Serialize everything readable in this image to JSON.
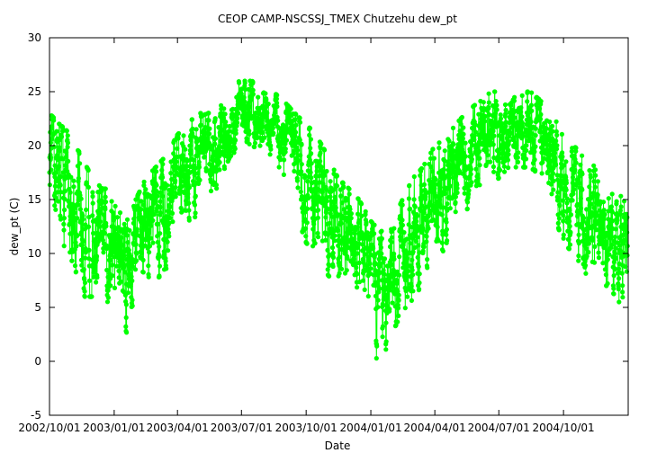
{
  "chart_data": {
    "type": "line",
    "title": "CEOP CAMP-NSCSSJ_TMEX Chutzehu  dew_pt",
    "xlabel": "Date",
    "ylabel": "dew_pt (C)",
    "xlim": [
      "2002-10-01",
      "2005-01-01"
    ],
    "ylim": [
      -5,
      30
    ],
    "x_ticks": [
      "2002/10/01",
      "2003/01/01",
      "2003/04/01",
      "2003/07/01",
      "2003/10/01",
      "2004/01/01",
      "2004/04/01",
      "2004/07/01",
      "2004/10/01"
    ],
    "y_ticks": [
      -5,
      0,
      5,
      10,
      15,
      20,
      25,
      30
    ],
    "grid": false,
    "legend": "none",
    "series_color": "#00ff00",
    "series": [
      {
        "marker": "filled-circle",
        "x": [
          "2002-10-01",
          "2002-10-15",
          "2002-11-01",
          "2002-11-15",
          "2002-12-01",
          "2002-12-15",
          "2003-01-01",
          "2003-01-15",
          "2003-02-01",
          "2003-02-15",
          "2003-03-01",
          "2003-03-15",
          "2003-04-01",
          "2003-04-15",
          "2003-05-01",
          "2003-05-15",
          "2003-06-01",
          "2003-06-15",
          "2003-07-01",
          "2003-07-15",
          "2003-08-01",
          "2003-08-15",
          "2003-09-01",
          "2003-09-15",
          "2003-10-01",
          "2003-10-15",
          "2003-11-01",
          "2003-11-15",
          "2003-12-01",
          "2003-12-15",
          "2004-01-01",
          "2004-01-15",
          "2004-02-01",
          "2004-02-15",
          "2004-03-01",
          "2004-03-15",
          "2004-04-01",
          "2004-04-15",
          "2004-05-01",
          "2004-05-15",
          "2004-06-01",
          "2004-06-15",
          "2004-07-01",
          "2004-07-15",
          "2004-08-01",
          "2004-08-15",
          "2004-09-01",
          "2004-09-15",
          "2004-10-01",
          "2004-10-15",
          "2004-11-01",
          "2004-11-15",
          "2004-12-01",
          "2004-12-15",
          "2004-12-31"
        ],
        "mean": [
          19,
          18,
          15,
          13,
          12,
          11,
          11,
          10,
          11,
          12,
          13,
          15,
          17,
          18,
          19,
          19,
          21,
          22,
          23,
          23,
          22.5,
          22,
          21,
          19,
          17,
          16,
          14,
          13,
          11,
          10,
          8,
          7,
          8,
          10,
          11,
          13,
          15,
          16,
          18,
          19,
          20,
          21,
          21,
          21,
          21.5,
          21.5,
          21,
          19,
          16,
          15,
          14,
          13,
          12,
          11,
          10
        ],
        "high": [
          23,
          22,
          21,
          19,
          17,
          16,
          16,
          15,
          15,
          17,
          18,
          19,
          21,
          22,
          23,
          23,
          25,
          26,
          26,
          26,
          25.5,
          25,
          24,
          23,
          22,
          21,
          19,
          17,
          16,
          15,
          13,
          12,
          13,
          15,
          17,
          18,
          20,
          21,
          22,
          23,
          24,
          25,
          25,
          24,
          25,
          25,
          24,
          23,
          21,
          20,
          19,
          18,
          17,
          16,
          15
        ],
        "low": [
          14,
          12,
          8,
          6,
          6,
          5,
          5,
          2,
          3,
          6,
          6,
          8,
          11,
          12,
          14,
          14,
          17,
          19,
          20,
          20,
          19.5,
          19,
          17,
          14,
          11,
          10,
          8,
          7,
          5,
          4,
          2,
          -1,
          3,
          4,
          5,
          7,
          8,
          9,
          12,
          14,
          15,
          16,
          17,
          18,
          18,
          18,
          17,
          14,
          11,
          10,
          8,
          8,
          7,
          6,
          4
        ]
      }
    ]
  }
}
